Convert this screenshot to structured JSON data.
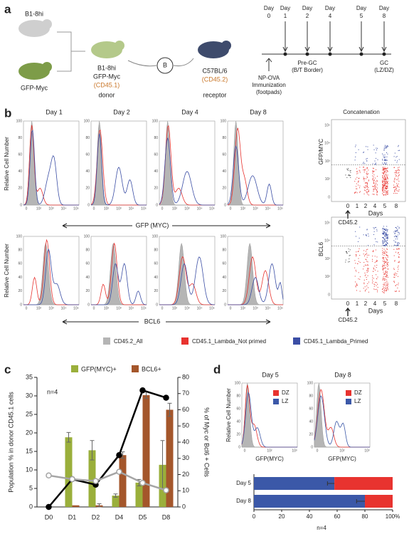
{
  "panel_a": {
    "label": "a",
    "mouse1": "B1-8hi",
    "mouse2": "GFP-Myc",
    "donor_lines": [
      "B1-8hi",
      "GFP-Myc",
      "(CD45.1)",
      "donor"
    ],
    "transfer": "B",
    "receptor_lines": [
      "C57BL/6",
      "(CD45.2)",
      "receptor"
    ],
    "days": [
      {
        "day": "Day",
        "num": "0"
      },
      {
        "day": "Day",
        "num": "1"
      },
      {
        "day": "Day",
        "num": "2"
      },
      {
        "day": "Day",
        "num": "4"
      },
      {
        "day": "Day",
        "num": "5"
      },
      {
        "day": "Day",
        "num": "8"
      }
    ],
    "immunization": [
      "NP-OVA",
      "Immunization",
      "(footpads)"
    ],
    "pre_gc": [
      "Pre-GC",
      "(B/T Border)"
    ],
    "gc": [
      "GC",
      "(LZ/DZ)"
    ]
  },
  "panel_b": {
    "label": "b",
    "day_titles": [
      "Day 1",
      "Day 2",
      "Day 4",
      "Day 8"
    ],
    "ylabel": "Relative Cell Number",
    "hist_yticks": [
      "0",
      "20",
      "40",
      "60",
      "80",
      "100"
    ],
    "hist_xticks": [
      "0",
      "10²",
      "10³",
      "10⁴",
      "10⁵"
    ],
    "axis1": "GFP (MYC)",
    "axis2": "BCL6",
    "concat_title": "Concatenation",
    "concat_ylabel1": "GFP/MYC",
    "concat_ylabel2": "BCL6",
    "scatter_yticks": [
      "10⁵",
      "10⁴",
      "10³",
      "10²",
      "0"
    ],
    "scatter_xticks": [
      "0",
      "1",
      "2",
      "4",
      "5",
      "8"
    ],
    "scatter_xlabel": "Days",
    "cd452": "CD45.2",
    "legend": [
      {
        "name": "CD45.2_All",
        "color": "#b5b5b5"
      },
      {
        "name": "CD45.1_Lambda_Not primed",
        "color": "#e8332f"
      },
      {
        "name": "CD45.1_Lambda_Primed",
        "color": "#3b4ea5"
      }
    ]
  },
  "panel_c": {
    "label": "c"
  },
  "panel_d": {
    "label": "d",
    "hist_titles": [
      "Day 5",
      "Day 8"
    ],
    "ylabel": "Relative Cell Number",
    "xlabel": "GFP(MYC)",
    "hist_yticks": [
      "0",
      "20",
      "40",
      "60",
      "80",
      "100"
    ],
    "hist_xticks": [
      "0",
      "10²",
      "10³"
    ]
  },
  "chart_data": [
    {
      "type": "bar",
      "categories": [
        "D0",
        "D1",
        "D2",
        "D4",
        "D5",
        "D8"
      ],
      "ylabel": "Population % in donor CD45.1 cells",
      "y2label": "% of Myc or Bcl6 + Cells",
      "annotation": "n=4",
      "ylim": [
        0,
        35
      ],
      "yticks": [
        0,
        5,
        10,
        15,
        20,
        25,
        30,
        35
      ],
      "y2lim": [
        0,
        80
      ],
      "y2ticks": [
        0,
        10,
        20,
        30,
        40,
        50,
        60,
        70,
        80
      ],
      "series": [
        {
          "name": "GFP(MYC)+",
          "type": "bar",
          "axis": "y2",
          "color": "#9aaf3b",
          "values": [
            0,
            43,
            35,
            7,
            15,
            26
          ],
          "errors": [
            null,
            3,
            6,
            1,
            2,
            15
          ]
        },
        {
          "name": "BCL6+",
          "type": "bar",
          "axis": "y2",
          "color": "#a4562b",
          "values": [
            0,
            1,
            1,
            32,
            69,
            60
          ],
          "errors": [
            null,
            null,
            1,
            2,
            2,
            4
          ]
        },
        {
          "type": "line",
          "color": "#000000",
          "values": [
            0,
            7.5,
            6,
            14,
            31.5,
            29.5
          ]
        },
        {
          "type": "line",
          "color": "#a5a5a5",
          "values": [
            8.5,
            7.5,
            7,
            9.5,
            6.5,
            4.5
          ]
        }
      ]
    },
    {
      "type": "bar",
      "orientation": "horizontal",
      "stacked": true,
      "categories": [
        "Day 5",
        "Day 8"
      ],
      "annotation": "n=4",
      "xlim": [
        0,
        100
      ],
      "xticks": [
        0,
        20,
        40,
        60,
        80,
        {
          "value": 100,
          "label": "100%"
        }
      ],
      "series": [
        {
          "name": "DZ",
          "color": "#e8332f",
          "values": [
            42,
            20
          ]
        },
        {
          "name": "LZ",
          "color": "#3b58a8",
          "values": [
            58,
            80
          ],
          "errors": [
            5,
            6
          ]
        }
      ]
    }
  ]
}
